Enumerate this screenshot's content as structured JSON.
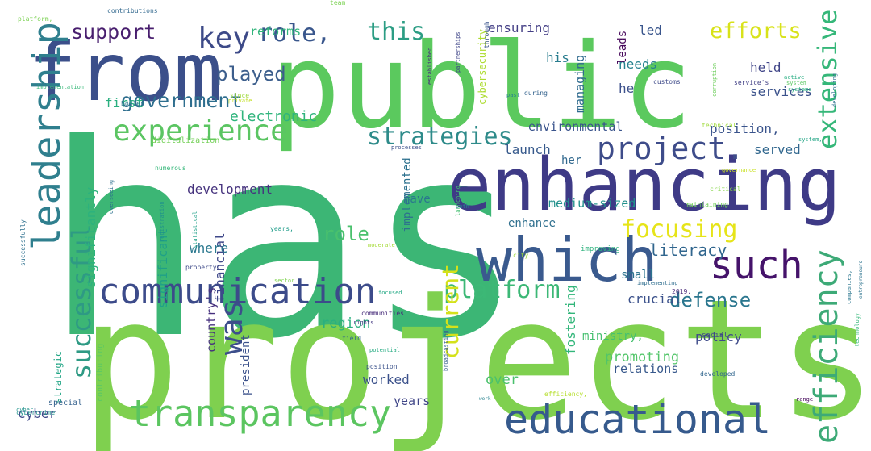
{
  "words": [
    {
      "text": "has",
      "color": "#3cb675"
    },
    {
      "text": "projects",
      "color": "#7fd04f"
    },
    {
      "text": "public",
      "color": "#5bc95e"
    },
    {
      "text": "from",
      "color": "#3b4f8a"
    },
    {
      "text": "enhancing",
      "color": "#3e3a86"
    },
    {
      "text": "which",
      "color": "#3a5a8e"
    },
    {
      "text": "educational",
      "color": "#365a8d"
    },
    {
      "text": "transparency",
      "color": "#5bc560"
    },
    {
      "text": "communication",
      "color": "#3c4b8a"
    },
    {
      "text": "leadership",
      "color": "#2f7f8e"
    },
    {
      "text": "efficiency",
      "color": "#3daa77"
    },
    {
      "text": "project.",
      "color": "#3e4c8a"
    },
    {
      "text": "such",
      "color": "#45136a"
    },
    {
      "text": "experience",
      "color": "#5bc562"
    },
    {
      "text": "strategies",
      "color": "#2e8b8a"
    },
    {
      "text": "platform",
      "color": "#3cb876"
    },
    {
      "text": "government",
      "color": "#2e6e8e"
    },
    {
      "text": "was",
      "color": "#3c4e8b"
    },
    {
      "text": "successful",
      "color": "#2e9a84"
    },
    {
      "text": "this",
      "color": "#2c9d84"
    },
    {
      "text": "key",
      "color": "#3d4a88"
    },
    {
      "text": "role,",
      "color": "#39568c"
    },
    {
      "text": "played",
      "color": "#3c5e8c"
    },
    {
      "text": "support",
      "color": "#481e6e"
    },
    {
      "text": "efforts",
      "color": "#d8e219"
    },
    {
      "text": "focusing",
      "color": "#e6e419"
    },
    {
      "text": "extensive",
      "color": "#35b779"
    },
    {
      "text": "defense",
      "color": "#2a768e"
    },
    {
      "text": "current",
      "color": "#d4e11a"
    },
    {
      "text": "role",
      "color": "#4ac16d"
    },
    {
      "text": "literacy",
      "color": "#31668e"
    },
    {
      "text": "electronic",
      "color": "#2fb47c"
    },
    {
      "text": "development",
      "color": "#46337e"
    },
    {
      "text": "environmental",
      "color": "#3a548c"
    },
    {
      "text": "position,",
      "color": "#3a548c"
    },
    {
      "text": "services",
      "color": "#3b528b"
    },
    {
      "text": "ensuring",
      "color": "#433e85"
    },
    {
      "text": "managing",
      "color": "#2f6b8e"
    },
    {
      "text": "launch",
      "color": "#375a8c"
    },
    {
      "text": "served",
      "color": "#31678e"
    },
    {
      "text": "enhance",
      "color": "#2e6f8e"
    },
    {
      "text": "medium-sized",
      "color": "#21918c"
    },
    {
      "text": "promoting",
      "color": "#52c569"
    },
    {
      "text": "relations",
      "color": "#38598c"
    },
    {
      "text": "policy",
      "color": "#3e4a89"
    },
    {
      "text": "region",
      "color": "#2ab07f"
    },
    {
      "text": "worked",
      "color": "#3b518b"
    },
    {
      "text": "years",
      "color": "#404688"
    },
    {
      "text": "over",
      "color": "#4ac16d"
    },
    {
      "text": "cyber",
      "color": "#3e4989"
    },
    {
      "text": "crucial",
      "color": "#3b518b"
    },
    {
      "text": "fostering",
      "color": "#32b67a"
    },
    {
      "text": "ministry,",
      "color": "#46c06f"
    },
    {
      "text": "financial",
      "color": "#3f4889"
    },
    {
      "text": "significant",
      "color": "#1fa088"
    },
    {
      "text": "significantly",
      "color": "#2db27d"
    },
    {
      "text": "country's",
      "color": "#46307e"
    },
    {
      "text": "president",
      "color": "#3b518b"
    },
    {
      "text": "where",
      "color": "#2a788e"
    },
    {
      "text": "reforms",
      "color": "#31b57b"
    },
    {
      "text": "first",
      "color": "#29af7f"
    },
    {
      "text": "his",
      "color": "#287c8e"
    },
    {
      "text": "held",
      "color": "#404588"
    },
    {
      "text": "he",
      "color": "#3c508b"
    },
    {
      "text": "needs",
      "color": "#26828e"
    },
    {
      "text": "led",
      "color": "#39558c"
    },
    {
      "text": "leads",
      "color": "#46075a"
    },
    {
      "text": "have",
      "color": "#2a778e"
    },
    {
      "text": "her",
      "color": "#31688e"
    },
    {
      "text": "small",
      "color": "#2c738e"
    },
    {
      "text": "implemented",
      "color": "#2d718e"
    },
    {
      "text": "digitalization",
      "color": "#73d056"
    },
    {
      "text": "cybersecurity",
      "color": "#addc30"
    },
    {
      "text": "strategic",
      "color": "#21a585"
    },
    {
      "text": "contributing",
      "color": "#5cc863"
    },
    {
      "text": "special",
      "color": "#34618d"
    },
    {
      "text": "cybercrime",
      "color": "#20928c"
    },
    {
      "text": "platform,",
      "color": "#7ad151"
    },
    {
      "text": "contributions",
      "color": "#31688e"
    },
    {
      "text": "since",
      "color": "#9fda3a"
    },
    {
      "text": "team",
      "color": "#7ad151"
    },
    {
      "text": "through",
      "color": "#39558c"
    },
    {
      "text": "during",
      "color": "#33628d"
    },
    {
      "text": "past",
      "color": "#27808e"
    },
    {
      "text": "customs",
      "color": "#3e4a89"
    },
    {
      "text": "service's",
      "color": "#424086"
    },
    {
      "text": "technical",
      "color": "#9fda3a"
    },
    {
      "text": "governance",
      "color": "#c8e020"
    },
    {
      "text": "critical",
      "color": "#86d549"
    },
    {
      "text": "improving",
      "color": "#2db27d"
    },
    {
      "text": "implementing",
      "color": "#2e6d8e"
    },
    {
      "text": "maintaining",
      "color": "#6ece58"
    },
    {
      "text": "city",
      "color": "#9bd93c"
    },
    {
      "text": "2019,",
      "color": "#482878"
    },
    {
      "text": "sector",
      "color": "#7fd34e"
    },
    {
      "text": "moderate",
      "color": "#a5db36"
    },
    {
      "text": "property",
      "color": "#3e4a89"
    },
    {
      "text": "years,",
      "color": "#1e9c89"
    },
    {
      "text": "registration",
      "color": "#20928c"
    },
    {
      "text": "private",
      "color": "#c2df23"
    },
    {
      "text": "bodies",
      "color": "#2a788e"
    },
    {
      "text": "numerous",
      "color": "#35b779"
    },
    {
      "text": "successfully",
      "color": "#2d708e"
    },
    {
      "text": "social",
      "color": "#3f4788"
    },
    {
      "text": "field",
      "color": "#32658e"
    },
    {
      "text": "potential",
      "color": "#25ab82"
    },
    {
      "text": "position",
      "color": "#3b528b"
    },
    {
      "text": "rights",
      "color": "#443983"
    },
    {
      "text": "focused",
      "color": "#22a884"
    },
    {
      "text": "communities",
      "color": "#472c7a"
    },
    {
      "text": "developed",
      "color": "#31668e"
    },
    {
      "text": "efficiency,",
      "color": "#b5de2b"
    },
    {
      "text": "broadcasting",
      "color": "#355f8d"
    },
    {
      "text": "range",
      "color": "#46085c"
    },
    {
      "text": "work",
      "color": "#26828e"
    },
    {
      "text": "statistical",
      "color": "#1fa088"
    },
    {
      "text": "corruption",
      "color": "#6ccd5a"
    },
    {
      "text": "developing",
      "color": "#2e6f8e"
    },
    {
      "text": "partnerships",
      "color": "#404688"
    },
    {
      "text": "established",
      "color": "#472e7c"
    },
    {
      "text": "processes",
      "color": "#3b518b"
    },
    {
      "text": "both",
      "color": "#24878e"
    },
    {
      "text": "launching",
      "color": "#44bf70"
    },
    {
      "text": "companies,",
      "color": "#2a768e"
    },
    {
      "text": "technology",
      "color": "#35b779"
    },
    {
      "text": "systems",
      "color": "#29af7f"
    },
    {
      "text": "system,",
      "color": "#21a585"
    },
    {
      "text": "entrepreneurs",
      "color": "#2c738e"
    },
    {
      "text": "active",
      "color": "#26ad81"
    },
    {
      "text": "implementation",
      "color": "#37b878"
    },
    {
      "text": "system",
      "color": "#5cc863"
    },
    {
      "text": "cyber",
      "color": "#20928c"
    },
    {
      "text": "overseeing",
      "color": "#2d708e"
    }
  ]
}
